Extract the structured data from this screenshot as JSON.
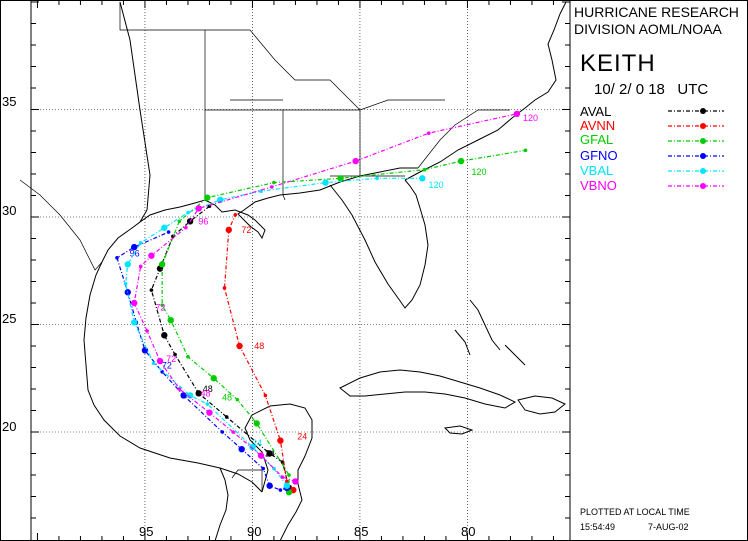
{
  "header": {
    "org_line1": "HURRICANE RESEARCH",
    "org_line2": "DIVISION AOML/NOAA",
    "storm_name": "KEITH",
    "date_time": "10/ 2/ 0 18   UTC"
  },
  "axes": {
    "lat_labels": [
      "35",
      "30",
      "25",
      "20"
    ],
    "lon_labels": [
      "95",
      "90",
      "85",
      "80"
    ]
  },
  "legend": [
    {
      "name": "AVAL",
      "color": "#000000"
    },
    {
      "name": "AVNN",
      "color": "#ff0000"
    },
    {
      "name": "GFAL",
      "color": "#00cc00"
    },
    {
      "name": "GFNO",
      "color": "#0000ff"
    },
    {
      "name": "VBAL",
      "color": "#00e5ff"
    },
    {
      "name": "VBNO",
      "color": "#ff00ff"
    }
  ],
  "forecast_hour_labels": [
    "24",
    "48",
    "72",
    "96",
    "120"
  ],
  "footer": {
    "plotted_note": "PLOTTED AT LOCAL TIME",
    "time": "15:54:49",
    "date": "7-AUG-02"
  },
  "tracks": [
    {
      "name": "AVAL",
      "color": "#000000",
      "points": [
        [
          -88.3,
          17.4
        ],
        [
          -88.6,
          18.6
        ],
        [
          -89.2,
          19.0
        ],
        [
          -91.2,
          20.7
        ],
        [
          -92.5,
          21.8
        ],
        [
          -93.6,
          23.6
        ],
        [
          -94.1,
          24.5
        ],
        [
          -94.7,
          26.6
        ],
        [
          -94.3,
          27.6
        ],
        [
          -93.7,
          29.1
        ],
        [
          -92.9,
          29.8
        ],
        [
          -92.0,
          30.5
        ]
      ],
      "labels": [
        {
          "at": [
            -89.6,
            19.0
          ],
          "text": "24"
        },
        {
          "at": [
            -92.5,
            22.0
          ],
          "text": "48"
        }
      ]
    },
    {
      "name": "AVNN",
      "color": "#ff0000",
      "points": [
        [
          -88.1,
          17.3
        ],
        [
          -88.4,
          17.7
        ],
        [
          -88.7,
          19.6
        ],
        [
          -89.4,
          21.7
        ],
        [
          -90.6,
          24.0
        ],
        [
          -91.3,
          26.7
        ],
        [
          -91.1,
          29.4
        ],
        [
          -90.8,
          30.1
        ]
      ],
      "labels": [
        {
          "at": [
            -88.1,
            19.8
          ],
          "text": "24"
        },
        {
          "at": [
            -90.1,
            24.0
          ],
          "text": "48"
        },
        {
          "at": [
            -90.7,
            29.4
          ],
          "text": "72"
        }
      ]
    },
    {
      "name": "GFAL",
      "color": "#00cc00",
      "points": [
        [
          -88.3,
          17.2
        ],
        [
          -88.3,
          18.0
        ],
        [
          -89.8,
          20.4
        ],
        [
          -90.7,
          21.5
        ],
        [
          -91.8,
          22.5
        ],
        [
          -93.0,
          23.5
        ],
        [
          -93.8,
          25.2
        ],
        [
          -94.2,
          25.9
        ],
        [
          -94.2,
          27.8
        ],
        [
          -93.4,
          29.8
        ],
        [
          -92.1,
          30.9
        ],
        [
          -89.0,
          31.6
        ],
        [
          -85.9,
          31.8
        ],
        [
          -82.0,
          32.2
        ],
        [
          -80.3,
          32.6
        ],
        [
          -77.3,
          33.1
        ]
      ],
      "labels": [
        {
          "at": [
            -91.6,
            21.6
          ],
          "text": "48"
        },
        {
          "at": [
            -80.0,
            32.1
          ],
          "text": "120"
        }
      ]
    },
    {
      "name": "GFNO",
      "color": "#0000ff",
      "points": [
        [
          -88.4,
          17.4
        ],
        [
          -88.7,
          17.3
        ],
        [
          -89.2,
          17.5
        ],
        [
          -89.5,
          18.3
        ],
        [
          -90.5,
          19.2
        ],
        [
          -91.4,
          20.0
        ],
        [
          -93.2,
          21.7
        ],
        [
          -94.2,
          22.8
        ],
        [
          -95.0,
          23.8
        ],
        [
          -95.4,
          25.1
        ],
        [
          -95.8,
          26.5
        ],
        [
          -96.3,
          28.1
        ],
        [
          -95.5,
          28.6
        ],
        [
          -93.9,
          29.3
        ]
      ],
      "labels": [
        {
          "at": [
            -94.4,
            23.1
          ],
          "text": "72"
        },
        {
          "at": [
            -95.9,
            28.3
          ],
          "text": "96"
        }
      ]
    },
    {
      "name": "VBAL",
      "color": "#00e5ff",
      "points": [
        [
          -88.4,
          17.5
        ],
        [
          -89.0,
          18.3
        ],
        [
          -90.0,
          19.3
        ],
        [
          -92.1,
          21.3
        ],
        [
          -92.9,
          21.7
        ],
        [
          -94.6,
          23.2
        ],
        [
          -95.5,
          25.1
        ],
        [
          -95.9,
          26.9
        ],
        [
          -95.8,
          27.8
        ],
        [
          -95.2,
          28.8
        ],
        [
          -94.1,
          29.5
        ],
        [
          -93.0,
          30.2
        ],
        [
          -91.5,
          30.8
        ],
        [
          -89.6,
          31.2
        ],
        [
          -86.6,
          31.6
        ],
        [
          -84.2,
          31.8
        ],
        [
          -82.1,
          31.8
        ]
      ],
      "labels": [
        {
          "at": [
            -90.2,
            19.5
          ],
          "text": "24"
        },
        {
          "at": [
            -82.0,
            31.5
          ],
          "text": "120"
        }
      ]
    },
    {
      "name": "VBNO",
      "color": "#ff00ff",
      "points": [
        [
          -88.0,
          17.7
        ],
        [
          -88.6,
          17.9
        ],
        [
          -89.6,
          18.9
        ],
        [
          -90.9,
          20.0
        ],
        [
          -92.0,
          20.9
        ],
        [
          -93.4,
          22.0
        ],
        [
          -94.3,
          23.3
        ],
        [
          -94.9,
          24.7
        ],
        [
          -95.5,
          26.0
        ],
        [
          -95.2,
          27.7
        ],
        [
          -94.7,
          28.2
        ],
        [
          -93.1,
          29.5
        ],
        [
          -92.5,
          30.4
        ],
        [
          -89.1,
          31.4
        ],
        [
          -85.2,
          32.6
        ],
        [
          -81.8,
          33.9
        ],
        [
          -77.7,
          34.8
        ]
      ],
      "labels": [
        {
          "at": [
            -92.6,
            21.8
          ],
          "text": "48"
        },
        {
          "at": [
            -94.2,
            23.4
          ],
          "text": "72"
        },
        {
          "at": [
            -94.7,
            25.8
          ],
          "text": "72"
        },
        {
          "at": [
            -92.7,
            29.8
          ],
          "text": "96"
        },
        {
          "at": [
            -77.6,
            34.6
          ],
          "text": "120"
        }
      ]
    }
  ]
}
